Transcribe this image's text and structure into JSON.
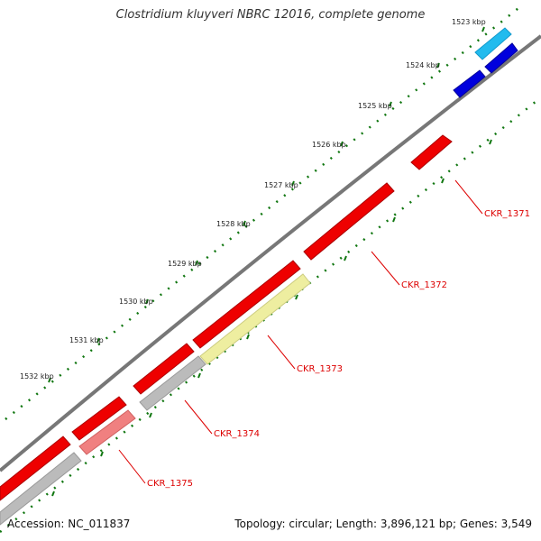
{
  "title": "Clostridium kluyveri NBRC 12016, complete genome",
  "footer": {
    "accession": "Accession: NC_011837",
    "summary": "Topology: circular; Length: 3,896,121 bp; Genes: 3,549"
  },
  "kbp_labels": [
    "1523 kbp",
    "1524 kbp",
    "1525 kbp",
    "1526 kbp",
    "1527 kbp",
    "1528 kbp",
    "1529 kbp",
    "1530 kbp",
    "1531 kbp",
    "1532 kbp"
  ],
  "gene_labels": [
    "CKR_1371",
    "CKR_1372",
    "CKR_1373",
    "CKR_1374",
    "CKR_1375"
  ],
  "colors": {
    "genome_line": "#777777",
    "tick": "#117711",
    "red_gene": "#ee0000",
    "grey_gene": "#bbbbbb",
    "yellow_gene": "#eeeea0",
    "pink_gene": "#f08080",
    "blue_gene": "#0000dd",
    "cyan_gene": "#22bbee",
    "label": "#dd0000"
  }
}
